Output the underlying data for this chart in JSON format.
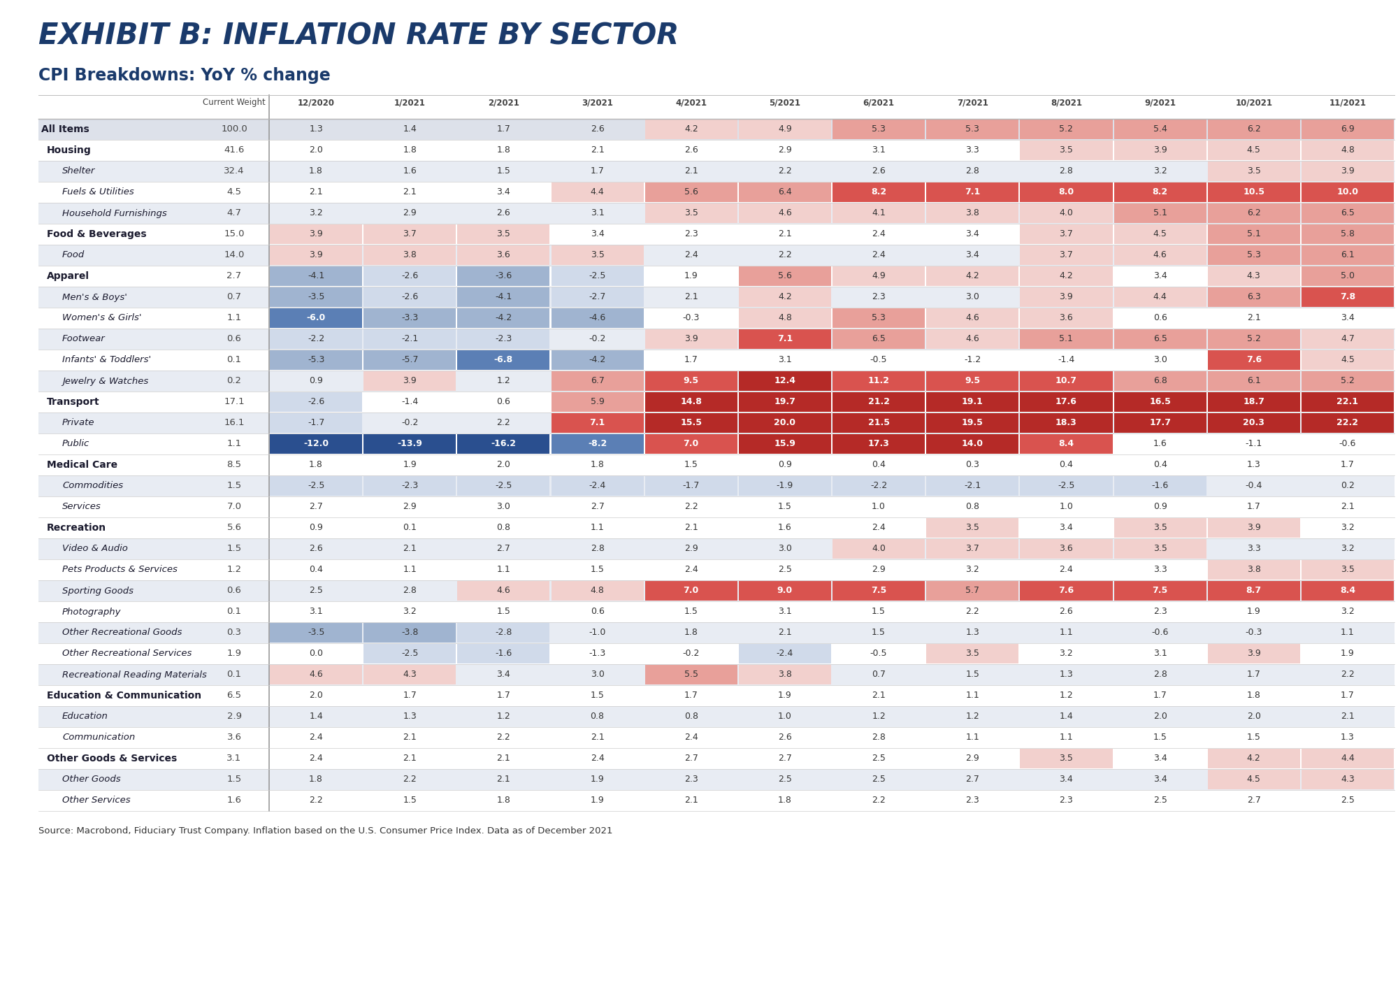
{
  "title": "EXHIBIT B: INFLATION RATE BY SECTOR",
  "subtitle": "CPI Breakdowns: YoY % change",
  "source": "Source: Macrobond, Fiduciary Trust Company. Inflation based on the U.S. Consumer Price Index. Data as of December 2021",
  "columns": [
    "Current Weight",
    "12/2020",
    "1/2021",
    "2/2021",
    "3/2021",
    "4/2021",
    "5/2021",
    "6/2021",
    "7/2021",
    "8/2021",
    "9/2021",
    "10/2021",
    "11/2021"
  ],
  "rows": [
    {
      "label": "All Items",
      "weight": 100.0,
      "level": 0,
      "bold": true,
      "italic": false,
      "values": [
        1.3,
        1.4,
        1.7,
        2.6,
        4.2,
        4.9,
        5.3,
        5.3,
        5.2,
        5.4,
        6.2,
        6.9
      ]
    },
    {
      "label": "Housing",
      "weight": 41.6,
      "level": 1,
      "bold": true,
      "italic": false,
      "values": [
        2.0,
        1.8,
        1.8,
        2.1,
        2.6,
        2.9,
        3.1,
        3.3,
        3.5,
        3.9,
        4.5,
        4.8
      ]
    },
    {
      "label": "Shelter",
      "weight": 32.4,
      "level": 2,
      "bold": false,
      "italic": true,
      "values": [
        1.8,
        1.6,
        1.5,
        1.7,
        2.1,
        2.2,
        2.6,
        2.8,
        2.8,
        3.2,
        3.5,
        3.9
      ]
    },
    {
      "label": "Fuels & Utilities",
      "weight": 4.5,
      "level": 2,
      "bold": false,
      "italic": true,
      "values": [
        2.1,
        2.1,
        3.4,
        4.4,
        5.6,
        6.4,
        8.2,
        7.1,
        8.0,
        8.2,
        10.5,
        10.0
      ]
    },
    {
      "label": "Household Furnishings",
      "weight": 4.7,
      "level": 2,
      "bold": false,
      "italic": true,
      "values": [
        3.2,
        2.9,
        2.6,
        3.1,
        3.5,
        4.6,
        4.1,
        3.8,
        4.0,
        5.1,
        6.2,
        6.5
      ]
    },
    {
      "label": "Food & Beverages",
      "weight": 15.0,
      "level": 1,
      "bold": true,
      "italic": false,
      "values": [
        3.9,
        3.7,
        3.5,
        3.4,
        2.3,
        2.1,
        2.4,
        3.4,
        3.7,
        4.5,
        5.1,
        5.8
      ]
    },
    {
      "label": "Food",
      "weight": 14.0,
      "level": 2,
      "bold": false,
      "italic": true,
      "values": [
        3.9,
        3.8,
        3.6,
        3.5,
        2.4,
        2.2,
        2.4,
        3.4,
        3.7,
        4.6,
        5.3,
        6.1
      ]
    },
    {
      "label": "Apparel",
      "weight": 2.7,
      "level": 1,
      "bold": true,
      "italic": false,
      "values": [
        -4.1,
        -2.6,
        -3.6,
        -2.5,
        1.9,
        5.6,
        4.9,
        4.2,
        4.2,
        3.4,
        4.3,
        5.0
      ]
    },
    {
      "label": "Men's & Boys'",
      "weight": 0.7,
      "level": 2,
      "bold": false,
      "italic": true,
      "values": [
        -3.5,
        -2.6,
        -4.1,
        -2.7,
        2.1,
        4.2,
        2.3,
        3.0,
        3.9,
        4.4,
        6.3,
        7.8
      ]
    },
    {
      "label": "Women's & Girls'",
      "weight": 1.1,
      "level": 2,
      "bold": false,
      "italic": true,
      "values": [
        -6.0,
        -3.3,
        -4.2,
        -4.6,
        -0.3,
        4.8,
        5.3,
        4.6,
        3.6,
        0.6,
        2.1,
        3.4
      ]
    },
    {
      "label": "Footwear",
      "weight": 0.6,
      "level": 2,
      "bold": false,
      "italic": true,
      "values": [
        -2.2,
        -2.1,
        -2.3,
        -0.2,
        3.9,
        7.1,
        6.5,
        4.6,
        5.1,
        6.5,
        5.2,
        4.7
      ]
    },
    {
      "label": "Infants' & Toddlers'",
      "weight": 0.1,
      "level": 2,
      "bold": false,
      "italic": true,
      "values": [
        -5.3,
        -5.7,
        -6.8,
        -4.2,
        1.7,
        3.1,
        -0.5,
        -1.2,
        -1.4,
        3.0,
        7.6,
        4.5
      ]
    },
    {
      "label": "Jewelry & Watches",
      "weight": 0.2,
      "level": 2,
      "bold": false,
      "italic": true,
      "values": [
        0.9,
        3.9,
        1.2,
        6.7,
        9.5,
        12.4,
        11.2,
        9.5,
        10.7,
        6.8,
        6.1,
        5.2
      ]
    },
    {
      "label": "Transport",
      "weight": 17.1,
      "level": 1,
      "bold": true,
      "italic": false,
      "values": [
        -2.6,
        -1.4,
        0.6,
        5.9,
        14.8,
        19.7,
        21.2,
        19.1,
        17.6,
        16.5,
        18.7,
        22.1
      ]
    },
    {
      "label": "Private",
      "weight": 16.1,
      "level": 2,
      "bold": false,
      "italic": true,
      "values": [
        -1.7,
        -0.2,
        2.2,
        7.1,
        15.5,
        20.0,
        21.5,
        19.5,
        18.3,
        17.7,
        20.3,
        22.2
      ]
    },
    {
      "label": "Public",
      "weight": 1.1,
      "level": 2,
      "bold": false,
      "italic": true,
      "values": [
        -12.0,
        -13.9,
        -16.2,
        -8.2,
        7.0,
        15.9,
        17.3,
        14.0,
        8.4,
        1.6,
        -1.1,
        -0.6
      ]
    },
    {
      "label": "Medical Care",
      "weight": 8.5,
      "level": 1,
      "bold": true,
      "italic": false,
      "values": [
        1.8,
        1.9,
        2.0,
        1.8,
        1.5,
        0.9,
        0.4,
        0.3,
        0.4,
        0.4,
        1.3,
        1.7
      ]
    },
    {
      "label": "Commodities",
      "weight": 1.5,
      "level": 2,
      "bold": false,
      "italic": true,
      "values": [
        -2.5,
        -2.3,
        -2.5,
        -2.4,
        -1.7,
        -1.9,
        -2.2,
        -2.1,
        -2.5,
        -1.6,
        -0.4,
        0.2
      ]
    },
    {
      "label": "Services",
      "weight": 7.0,
      "level": 2,
      "bold": false,
      "italic": true,
      "values": [
        2.7,
        2.9,
        3.0,
        2.7,
        2.2,
        1.5,
        1.0,
        0.8,
        1.0,
        0.9,
        1.7,
        2.1
      ]
    },
    {
      "label": "Recreation",
      "weight": 5.6,
      "level": 1,
      "bold": true,
      "italic": false,
      "values": [
        0.9,
        0.1,
        0.8,
        1.1,
        2.1,
        1.6,
        2.4,
        3.5,
        3.4,
        3.5,
        3.9,
        3.2
      ]
    },
    {
      "label": "Video & Audio",
      "weight": 1.5,
      "level": 2,
      "bold": false,
      "italic": true,
      "values": [
        2.6,
        2.1,
        2.7,
        2.8,
        2.9,
        3.0,
        4.0,
        3.7,
        3.6,
        3.5,
        3.3,
        3.2
      ]
    },
    {
      "label": "Pets Products & Services",
      "weight": 1.2,
      "level": 2,
      "bold": false,
      "italic": true,
      "values": [
        0.4,
        1.1,
        1.1,
        1.5,
        2.4,
        2.5,
        2.9,
        3.2,
        2.4,
        3.3,
        3.8,
        3.5
      ]
    },
    {
      "label": "Sporting Goods",
      "weight": 0.6,
      "level": 2,
      "bold": false,
      "italic": true,
      "values": [
        2.5,
        2.8,
        4.6,
        4.8,
        7.0,
        9.0,
        7.5,
        5.7,
        7.6,
        7.5,
        8.7,
        8.4
      ]
    },
    {
      "label": "Photography",
      "weight": 0.1,
      "level": 2,
      "bold": false,
      "italic": true,
      "values": [
        3.1,
        3.2,
        1.5,
        0.6,
        1.5,
        3.1,
        1.5,
        2.2,
        2.6,
        2.3,
        1.9,
        3.2
      ]
    },
    {
      "label": "Other Recreational Goods",
      "weight": 0.3,
      "level": 2,
      "bold": false,
      "italic": true,
      "values": [
        -3.5,
        -3.8,
        -2.8,
        -1.0,
        1.8,
        2.1,
        1.5,
        1.3,
        1.1,
        -0.6,
        -0.3,
        1.1
      ]
    },
    {
      "label": "Other Recreational Services",
      "weight": 1.9,
      "level": 2,
      "bold": false,
      "italic": true,
      "values": [
        0.0,
        -2.5,
        -1.6,
        -1.3,
        -0.2,
        -2.4,
        -0.5,
        3.5,
        3.2,
        3.1,
        3.9,
        1.9
      ]
    },
    {
      "label": "Recreational Reading Materials",
      "weight": 0.1,
      "level": 2,
      "bold": false,
      "italic": true,
      "values": [
        4.6,
        4.3,
        3.4,
        3.0,
        5.5,
        3.8,
        0.7,
        1.5,
        1.3,
        2.8,
        1.7,
        2.2
      ]
    },
    {
      "label": "Education & Communication",
      "weight": 6.5,
      "level": 1,
      "bold": true,
      "italic": false,
      "values": [
        2.0,
        1.7,
        1.7,
        1.5,
        1.7,
        1.9,
        2.1,
        1.1,
        1.2,
        1.7,
        1.8,
        1.7
      ]
    },
    {
      "label": "Education",
      "weight": 2.9,
      "level": 2,
      "bold": false,
      "italic": true,
      "values": [
        1.4,
        1.3,
        1.2,
        0.8,
        0.8,
        1.0,
        1.2,
        1.2,
        1.4,
        2.0,
        2.0,
        2.1
      ]
    },
    {
      "label": "Communication",
      "weight": 3.6,
      "level": 2,
      "bold": false,
      "italic": true,
      "values": [
        2.4,
        2.1,
        2.2,
        2.1,
        2.4,
        2.6,
        2.8,
        1.1,
        1.1,
        1.5,
        1.5,
        1.3
      ]
    },
    {
      "label": "Other Goods & Services",
      "weight": 3.1,
      "level": 1,
      "bold": true,
      "italic": false,
      "values": [
        2.4,
        2.1,
        2.1,
        2.4,
        2.7,
        2.7,
        2.5,
        2.9,
        3.5,
        3.4,
        4.2,
        4.4
      ]
    },
    {
      "label": "Other Goods",
      "weight": 1.5,
      "level": 2,
      "bold": false,
      "italic": true,
      "values": [
        1.8,
        2.2,
        2.1,
        1.9,
        2.3,
        2.5,
        2.5,
        2.7,
        3.4,
        3.4,
        4.5,
        4.3
      ]
    },
    {
      "label": "Other Services",
      "weight": 1.6,
      "level": 2,
      "bold": false,
      "italic": true,
      "values": [
        2.2,
        1.5,
        1.8,
        1.9,
        2.1,
        1.8,
        2.2,
        2.3,
        2.3,
        2.5,
        2.7,
        2.5
      ]
    }
  ],
  "bg_color": "#ffffff",
  "title_color": "#1a3a6b",
  "subtitle_color": "#1a3a6b",
  "allitems_bg": "#dde1ea",
  "level1_bg": "#ffffff",
  "sub_row_alt": "#e8ecf3",
  "sub_row_main": "#ffffff",
  "pos_vlight": "#f2d0cd",
  "pos_light": "#e8a09a",
  "pos_medium": "#d9534f",
  "pos_dark": "#b52a27",
  "neg_vlight": "#d0daea",
  "neg_light": "#a0b4d0",
  "neg_medium": "#5b7fb5",
  "neg_dark": "#2a4f8f",
  "col_sep_color": "#999999",
  "grid_color": "#cccccc"
}
